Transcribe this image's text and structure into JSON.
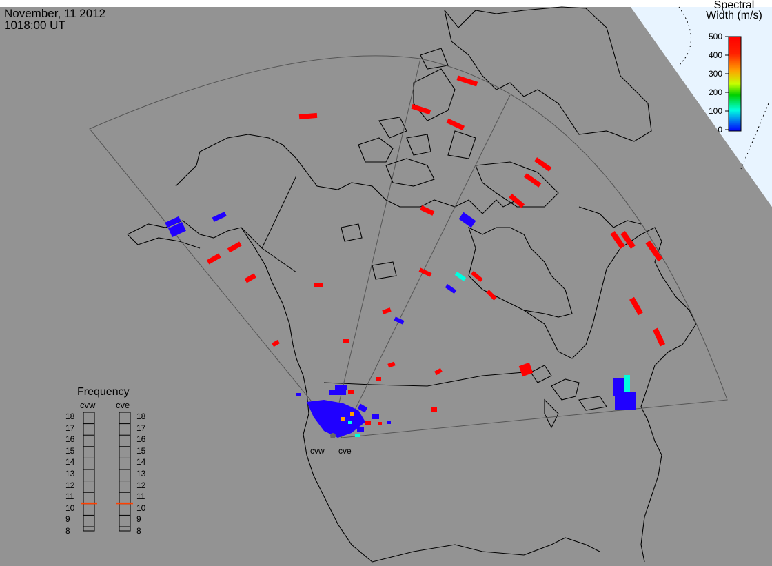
{
  "header": {
    "date": "November, 11 2012",
    "time": "1018:00 UT"
  },
  "legend": {
    "title_line1": "Spectral",
    "title_line2": "Width (m/s)",
    "ticks": [
      "500",
      "400",
      "300",
      "200",
      "100",
      "0"
    ],
    "colors": [
      "#ff0000",
      "#ff7a00",
      "#ffd700",
      "#00c800",
      "#00ffe0",
      "#0000ff"
    ]
  },
  "frequency": {
    "title": "Frequency",
    "radars": [
      "cvw",
      "cve"
    ],
    "ticks": [
      "18",
      "17",
      "16",
      "15",
      "14",
      "13",
      "12",
      "11",
      "10",
      "9",
      "8"
    ],
    "cvw_value_mhz": 10.4,
    "cve_value_mhz": 10.4,
    "marker_color": "#ff4000"
  },
  "radar_labels": {
    "west": "cvw",
    "east": "cve"
  },
  "colors": {
    "map_background": "#939393",
    "space_background": "#e8f4ff",
    "coast": "#000000",
    "fov": "#555555"
  }
}
